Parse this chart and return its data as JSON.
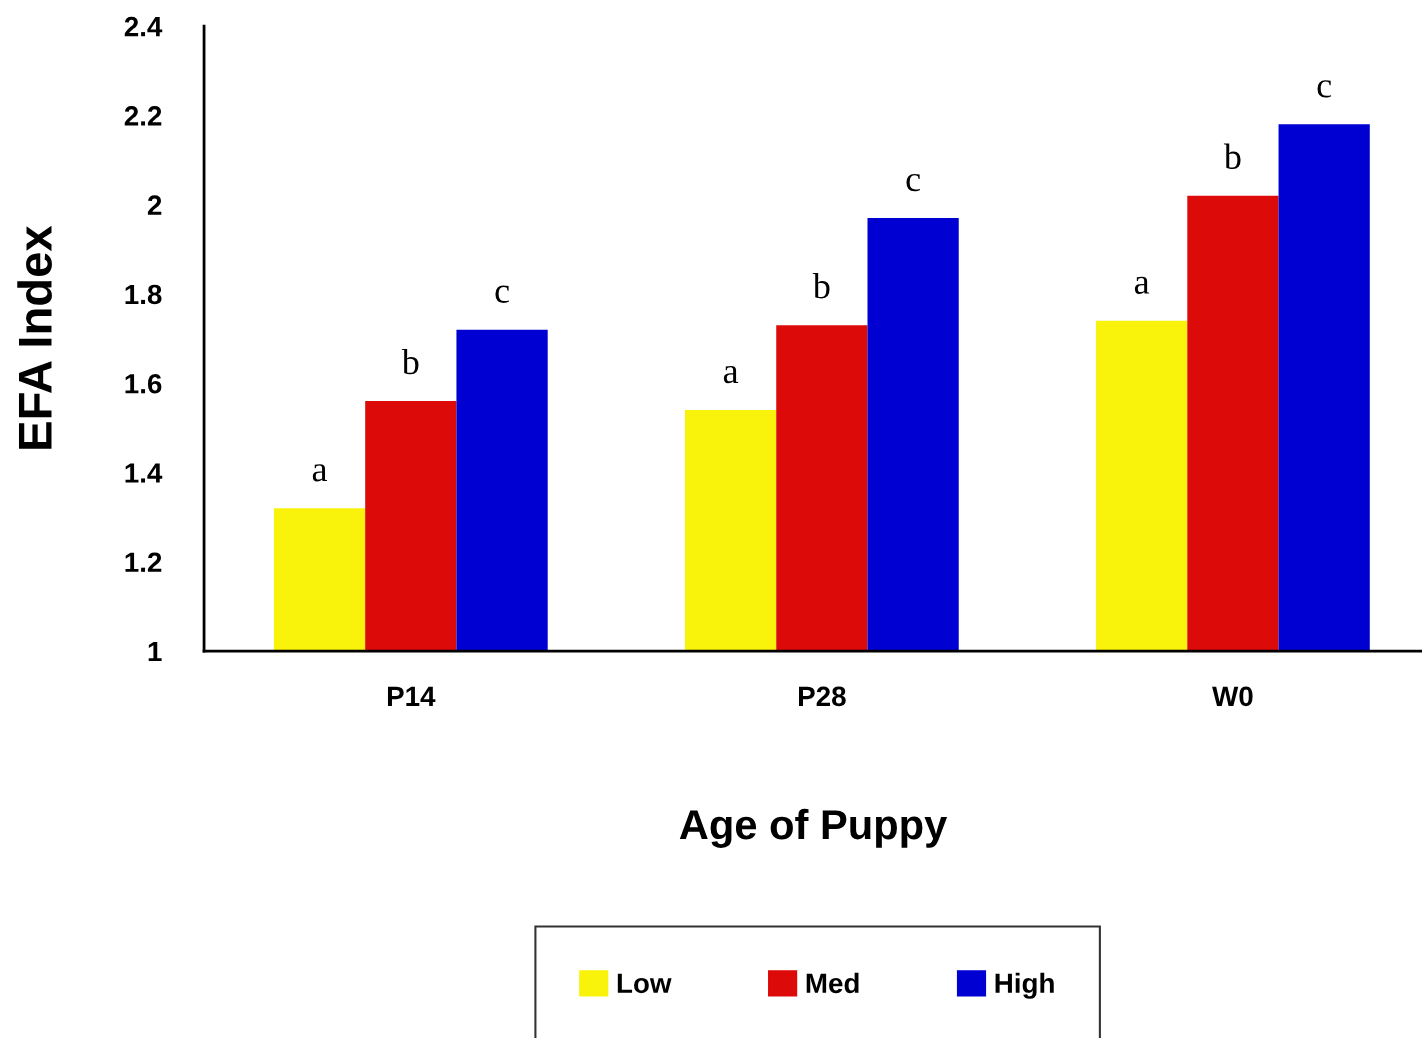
{
  "chart_data": {
    "type": "bar",
    "xlabel": "Age of Puppy",
    "ylabel": "EFA Index",
    "categories": [
      "P14",
      "P28",
      "W0"
    ],
    "series": [
      {
        "name": "Low",
        "color": "#f9f20a",
        "values": [
          1.32,
          1.54,
          1.74
        ],
        "value_labels": [
          "a",
          "a",
          "a"
        ]
      },
      {
        "name": "Med",
        "color": "#dd0a0a",
        "values": [
          1.56,
          1.73,
          2.02
        ],
        "value_labels": [
          "b",
          "b",
          "b"
        ]
      },
      {
        "name": "High",
        "color": "#0000d2",
        "values": [
          1.72,
          1.97,
          2.18
        ],
        "value_labels": [
          "c",
          "c",
          "c"
        ]
      }
    ],
    "ylim": [
      1,
      2.4
    ],
    "yticks": [
      1,
      1.2,
      1.4,
      1.6,
      1.8,
      2,
      2.2,
      2.4
    ],
    "grid": false,
    "legend": "bottom"
  }
}
